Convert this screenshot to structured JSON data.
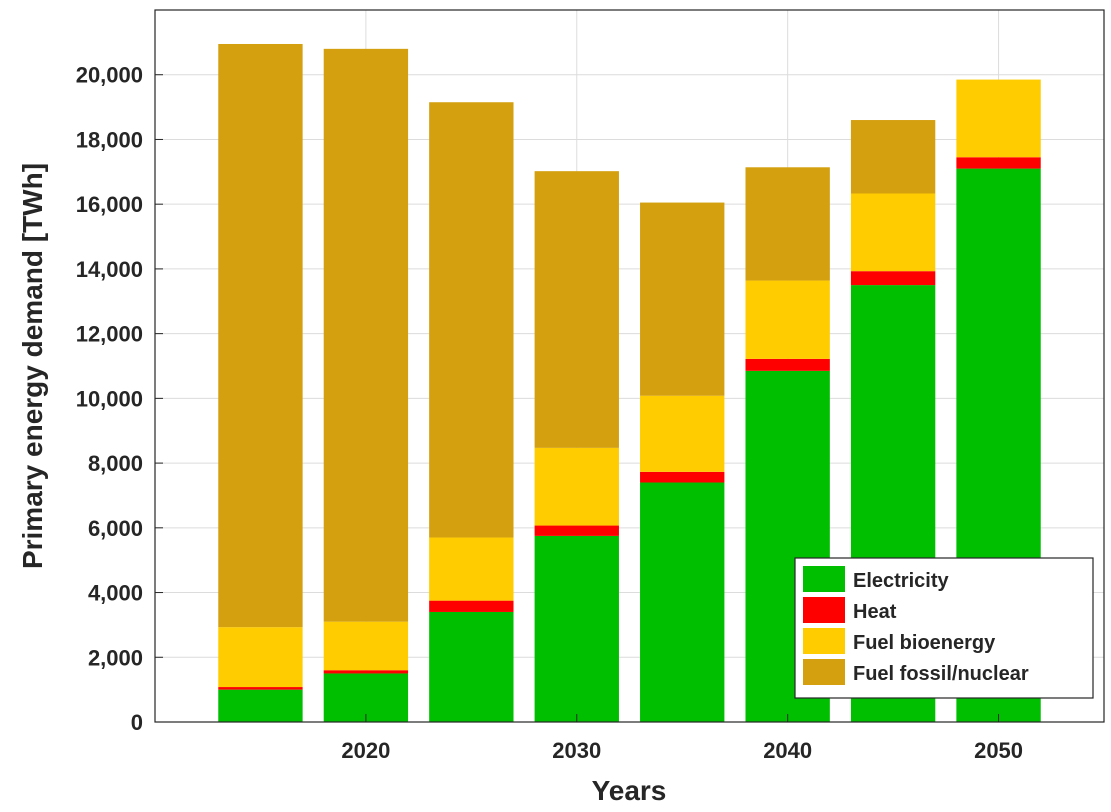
{
  "chart_data": {
    "type": "bar",
    "stacked": true,
    "x": [
      2015,
      2020,
      2025,
      2030,
      2035,
      2040,
      2045,
      2050
    ],
    "x_tick_labels": [
      "2020",
      "2030",
      "2040",
      "2050"
    ],
    "x_tick_values": [
      2020,
      2030,
      2040,
      2050
    ],
    "xlim": [
      2010,
      2055
    ],
    "ylim": [
      0,
      22000
    ],
    "y_tick_values": [
      0,
      2000,
      4000,
      6000,
      8000,
      10000,
      12000,
      14000,
      16000,
      18000,
      20000
    ],
    "y_tick_labels": [
      "0",
      "2,000",
      "4,000",
      "6,000",
      "8,000",
      "10,000",
      "12,000",
      "14,000",
      "16,000",
      "18,000",
      "20,000"
    ],
    "xlabel": "Years",
    "ylabel": "Primary energy demand [TWh]",
    "title": "",
    "grid": true,
    "legend_position": "bottom-right",
    "series": [
      {
        "name": "Electricity",
        "color": "#00bf00",
        "values": [
          1000,
          1500,
          3400,
          5750,
          7400,
          10850,
          13500,
          17100
        ]
      },
      {
        "name": "Heat",
        "color": "#ff0000",
        "values": [
          80,
          100,
          350,
          320,
          330,
          370,
          430,
          350
        ]
      },
      {
        "name": "Fuel bioenergy",
        "color": "#ffcc00",
        "values": [
          1850,
          1500,
          1950,
          2400,
          2350,
          2420,
          2400,
          2400
        ]
      },
      {
        "name": "Fuel fossil/nuclear",
        "color": "#d4a010",
        "values": [
          18020,
          17700,
          13450,
          8550,
          5970,
          3500,
          2270,
          0
        ]
      }
    ]
  }
}
